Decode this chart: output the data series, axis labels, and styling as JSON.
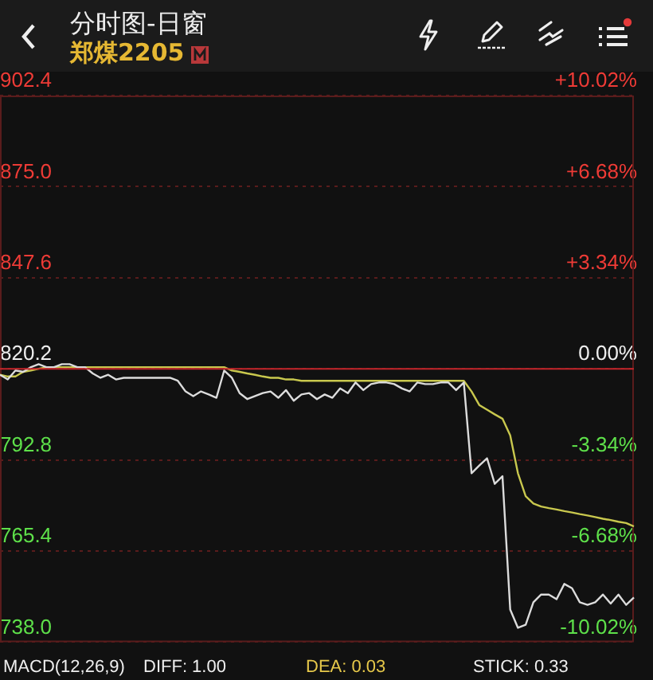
{
  "chart_data": {
    "type": "line",
    "title": "分时图-日窗",
    "subtitle": "郑煤2205",
    "categories": [
      null,
      null,
      null,
      null,
      null,
      null,
      null,
      null,
      null,
      null,
      null,
      null,
      null,
      null,
      null,
      null,
      null,
      null,
      null,
      null,
      null,
      null,
      null,
      null,
      null,
      null,
      null,
      null,
      null,
      null,
      null,
      null,
      null,
      null,
      null,
      null,
      null,
      null,
      null,
      null,
      null,
      null,
      null,
      null,
      null,
      null,
      null,
      null,
      null,
      null,
      null,
      null,
      null,
      null,
      null,
      null,
      null,
      null,
      null,
      null,
      null,
      null,
      null,
      null,
      null,
      null,
      null,
      null,
      null,
      null,
      null,
      null,
      null,
      null,
      null,
      null,
      null,
      null,
      null,
      null,
      null,
      null,
      null
    ],
    "series": [
      {
        "color": "#dcdcdc",
        "values": [
          818.4,
          817.0,
          819.7,
          819.3,
          820.7,
          821.6,
          820.7,
          820.7,
          821.6,
          821.6,
          820.7,
          820.7,
          818.8,
          817.5,
          818.4,
          817.0,
          817.5,
          817.5,
          817.5,
          817.5,
          817.5,
          817.5,
          817.5,
          816.6,
          813.4,
          812.0,
          813.4,
          812.5,
          811.5,
          819.7,
          817.5,
          812.9,
          811.1,
          812.0,
          812.9,
          813.4,
          811.5,
          813.8,
          810.6,
          812.5,
          812.9,
          811.1,
          812.5,
          811.5,
          814.3,
          812.9,
          816.1,
          813.8,
          815.6,
          816.1,
          816.1,
          815.6,
          814.3,
          813.4,
          816.1,
          815.6,
          815.6,
          816.1,
          816.1,
          813.8,
          816.1,
          788.8,
          791.1,
          793.3,
          785.6,
          787.9,
          747.8,
          742.3,
          743.2,
          750.0,
          752.3,
          752.3,
          750.9,
          755.5,
          754.2,
          750.0,
          749.2,
          750.0,
          752.3,
          749.6,
          752.3,
          749.2,
          751.4
        ]
      },
      {
        "color": "#c9c84e",
        "values": [
          818.4,
          817.9,
          817.9,
          819.3,
          819.7,
          820.2,
          820.7,
          820.7,
          820.7,
          820.7,
          820.7,
          820.7,
          820.7,
          820.7,
          820.7,
          820.7,
          820.7,
          820.7,
          820.7,
          820.7,
          820.7,
          820.7,
          820.7,
          820.7,
          820.7,
          820.7,
          820.7,
          820.7,
          820.7,
          820.7,
          819.7,
          819.3,
          818.8,
          818.4,
          817.9,
          817.5,
          817.5,
          817.0,
          817.0,
          816.6,
          816.6,
          816.6,
          816.6,
          816.6,
          816.6,
          816.6,
          816.6,
          816.6,
          816.6,
          816.6,
          816.6,
          816.6,
          816.6,
          816.6,
          816.6,
          816.6,
          816.6,
          816.6,
          816.6,
          816.6,
          816.6,
          813.4,
          809.3,
          807.9,
          806.5,
          805.2,
          800.2,
          788.8,
          781.9,
          779.7,
          778.8,
          778.3,
          777.9,
          777.4,
          777.0,
          776.5,
          776.1,
          775.6,
          775.1,
          774.7,
          774.2,
          773.8,
          772.8
        ]
      }
    ],
    "ylim": [
      738.0,
      902.4
    ],
    "yticks": [
      {
        "value": 738,
        "label": "738.0"
      },
      765.4,
      792.8,
      820.2,
      847.6,
      {
        "value": 875,
        "label": "875.0"
      },
      902.4
    ],
    "y2lim": [
      -10.02,
      10.02
    ],
    "y2ticks": [
      {
        "value": -10.02,
        "label": "-10.02%"
      },
      {
        "value": -6.68,
        "label": "-6.68%"
      },
      {
        "value": -3.34,
        "label": "-3.34%"
      },
      {
        "value": 0,
        "label": "0.00%"
      },
      {
        "value": 3.34,
        "label": "+3.34%"
      },
      {
        "value": 6.68,
        "label": "+6.68%"
      },
      {
        "value": 10.02,
        "label": "+10.02%"
      }
    ],
    "ref_lines": [
      {
        "axis": "y",
        "value": 820.2,
        "color": "#c4262b",
        "line_style": "solid"
      }
    ],
    "grid": "y",
    "legend": false,
    "marker": "none",
    "line_style": "solid",
    "annotations": [
      "MACD(12,26,9)",
      "DIFF: 1.00",
      "DEA: 0.03",
      "STICK: 0.33"
    ]
  }
}
